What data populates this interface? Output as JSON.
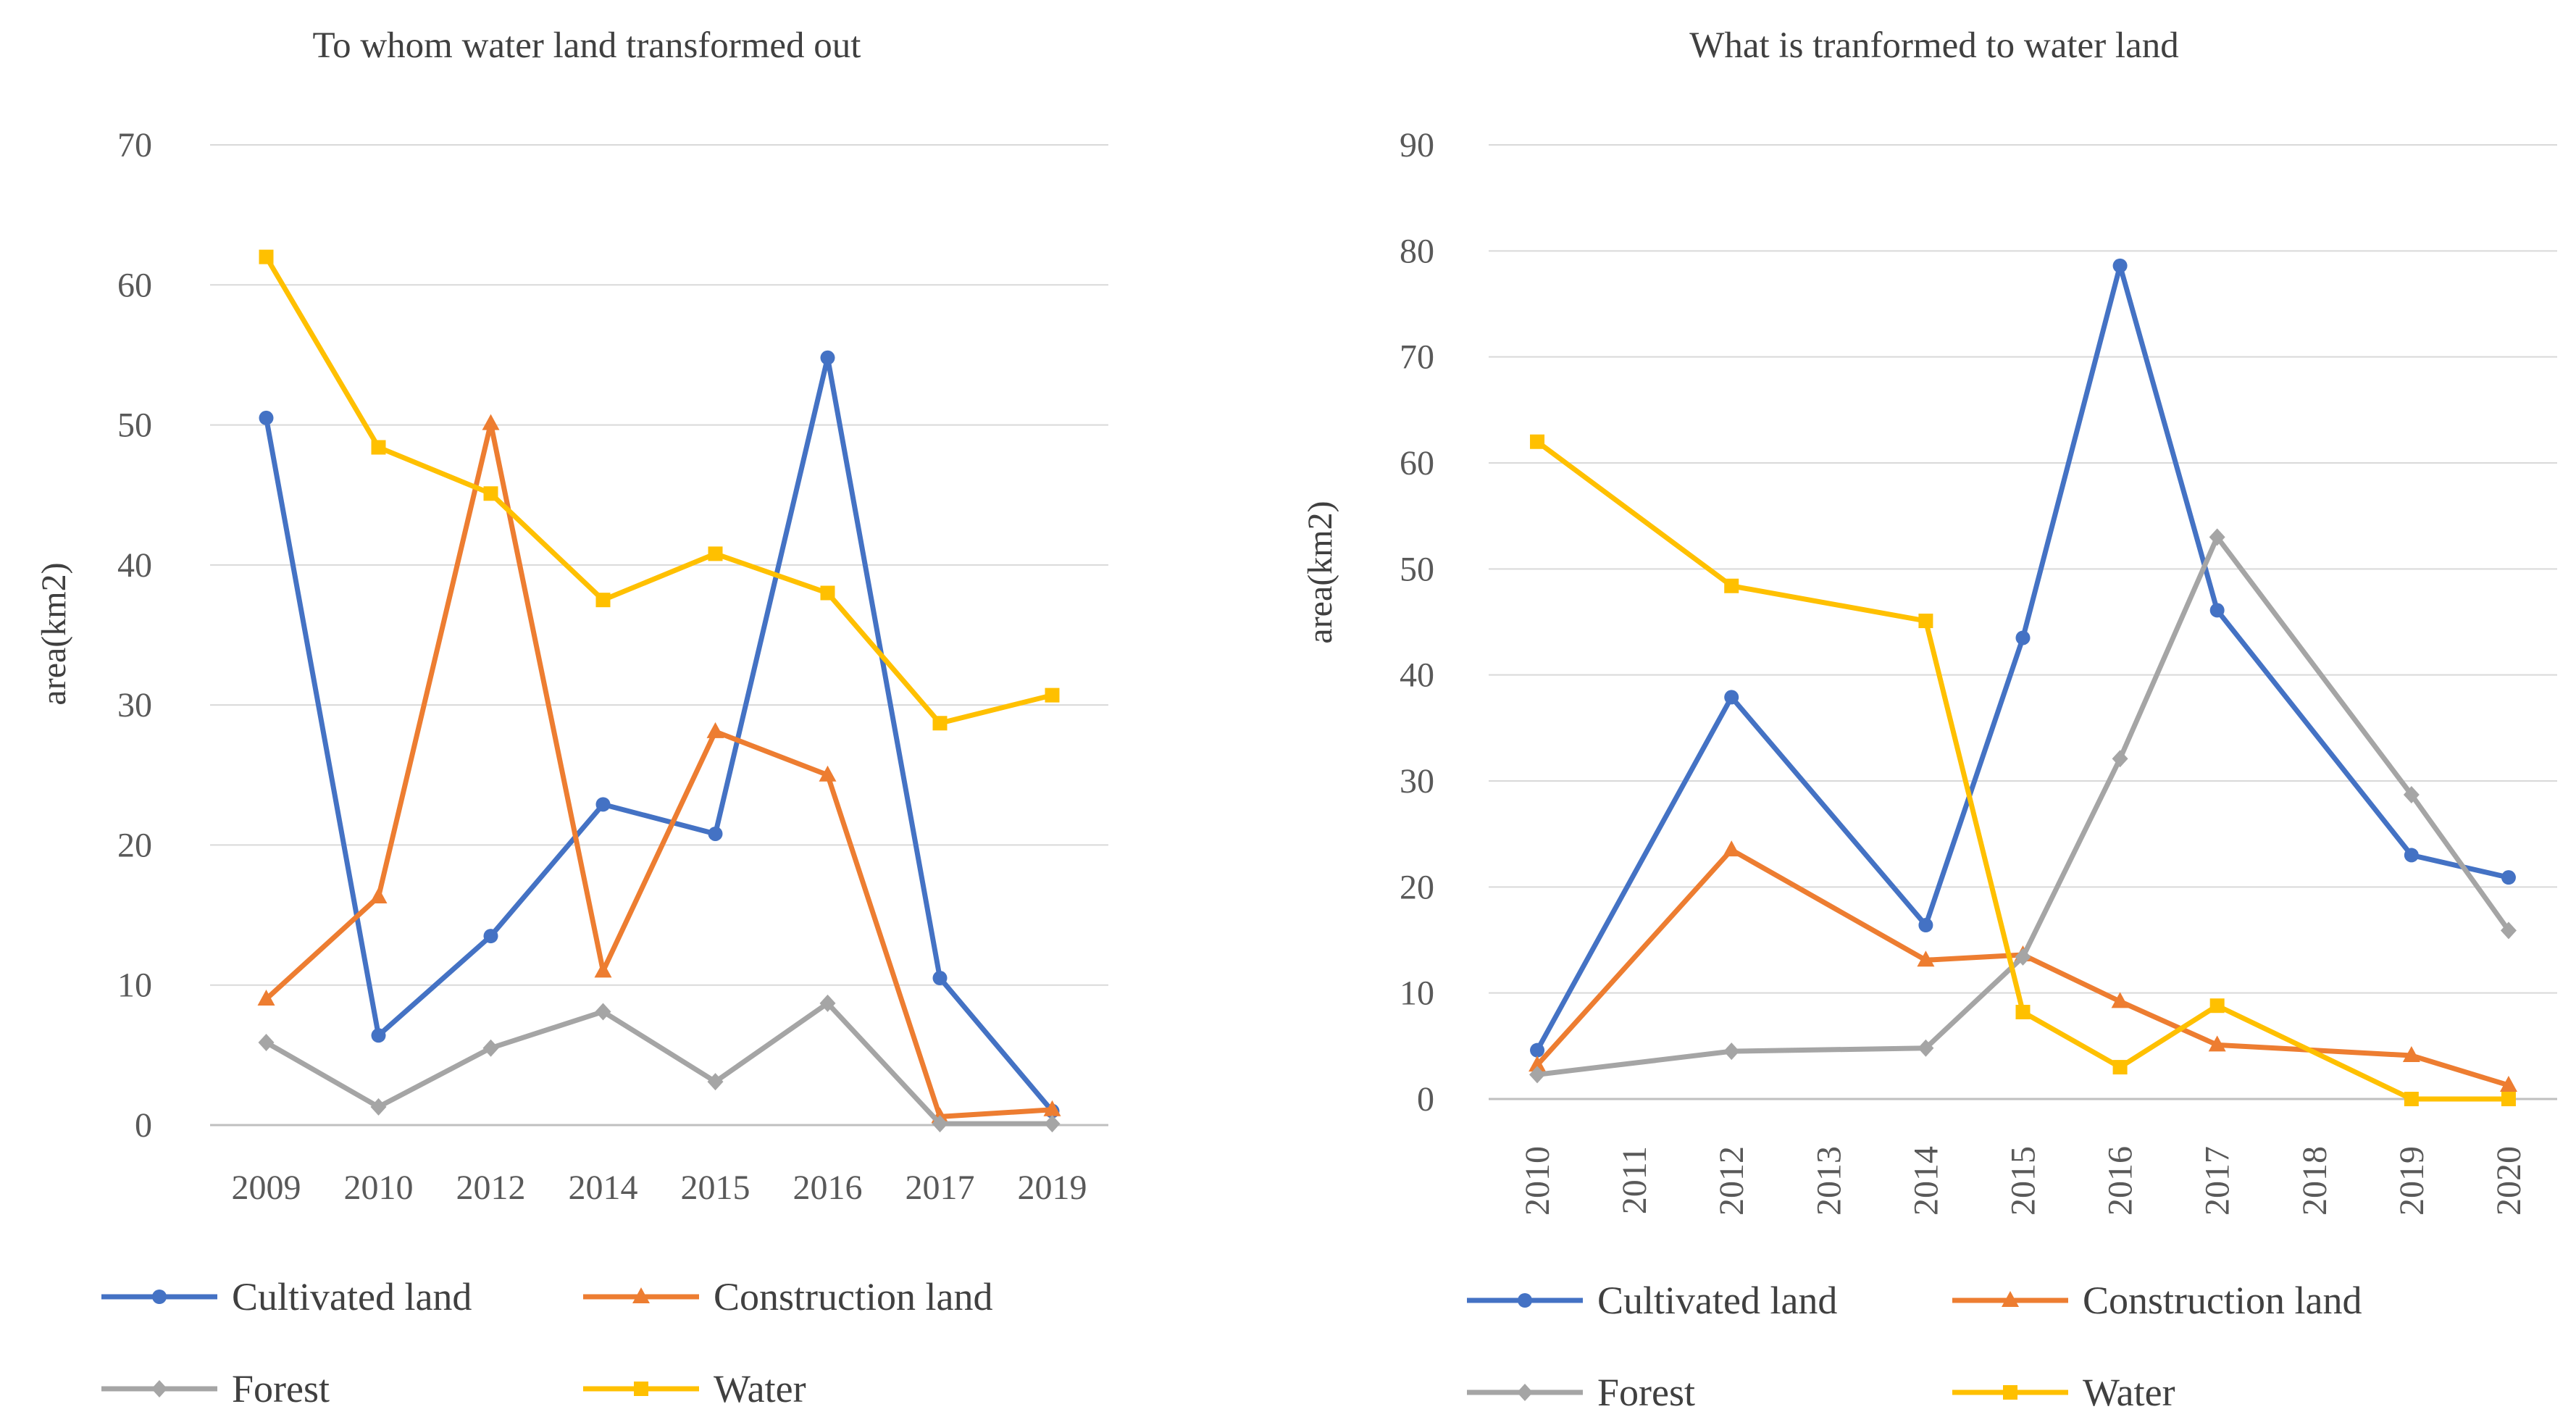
{
  "chart_data": [
    {
      "type": "line",
      "title": "To whom water land transformed out",
      "xlabel": "",
      "ylabel": "area(km2)",
      "ylim": [
        0,
        70
      ],
      "yticks": [
        0,
        10,
        20,
        30,
        40,
        50,
        60,
        70
      ],
      "categories": [
        "2009",
        "2010",
        "2012",
        "2014",
        "2015",
        "2016",
        "2017",
        "2019"
      ],
      "grid": true,
      "legend_position": "bottom",
      "series": [
        {
          "name": "Cultivated land",
          "color": "#4472C4",
          "marker": "circle",
          "values": [
            50.5,
            6.4,
            13.5,
            22.9,
            20.8,
            54.8,
            10.5,
            1.0
          ]
        },
        {
          "name": "Construction land",
          "color": "#ED7D31",
          "marker": "triangle",
          "values": [
            9.0,
            16.3,
            50.1,
            11.0,
            28.1,
            25.0,
            0.6,
            1.1
          ]
        },
        {
          "name": "Forest",
          "color": "#A5A5A5",
          "marker": "diamond",
          "values": [
            5.9,
            1.3,
            5.5,
            8.1,
            3.1,
            8.7,
            0.1,
            0.1
          ]
        },
        {
          "name": "Water",
          "color": "#FFC000",
          "marker": "square",
          "values": [
            62.0,
            48.4,
            45.1,
            37.5,
            40.8,
            38.0,
            28.7,
            30.7
          ]
        }
      ]
    },
    {
      "type": "line",
      "title": "What is tranformed to water land",
      "xlabel": "",
      "ylabel": "area(km2)",
      "ylim": [
        0,
        90
      ],
      "yticks": [
        0,
        10,
        20,
        30,
        40,
        50,
        60,
        70,
        80,
        90
      ],
      "categories": [
        "2010",
        "2011",
        "2012",
        "2013",
        "2014",
        "2015",
        "2016",
        "2017",
        "2018",
        "2019",
        "2020"
      ],
      "grid": true,
      "legend_position": "bottom",
      "series": [
        {
          "name": "Cultivated land",
          "color": "#4472C4",
          "marker": "circle",
          "values": [
            4.6,
            null,
            37.9,
            null,
            16.4,
            43.5,
            78.6,
            46.1,
            null,
            23.0,
            20.9
          ]
        },
        {
          "name": "Construction land",
          "color": "#ED7D31",
          "marker": "triangle",
          "values": [
            3.2,
            null,
            23.5,
            null,
            13.1,
            13.6,
            9.2,
            5.1,
            null,
            4.1,
            1.3
          ]
        },
        {
          "name": "Forest",
          "color": "#A5A5A5",
          "marker": "diamond",
          "values": [
            2.3,
            null,
            4.5,
            null,
            4.8,
            13.4,
            32.1,
            53.0,
            null,
            28.7,
            15.9
          ]
        },
        {
          "name": "Water",
          "color": "#FFC000",
          "marker": "square",
          "values": [
            62.0,
            null,
            48.4,
            null,
            45.1,
            8.2,
            3.0,
            8.8,
            null,
            0.0,
            0.0
          ]
        }
      ]
    }
  ]
}
